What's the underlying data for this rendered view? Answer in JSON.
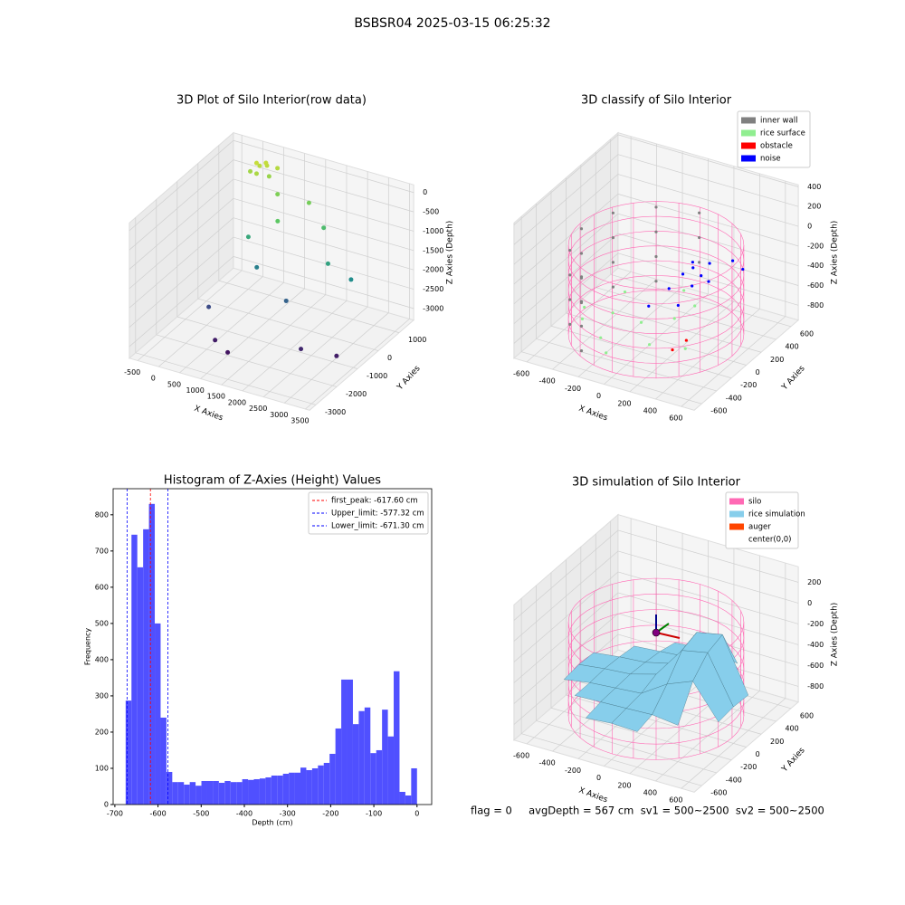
{
  "title": "BSBSR04 2025-03-15 06:25:32",
  "status": "flag = 0     avgDepth = 567 cm  sv1 = 500~2500  sv2 = 500~2500",
  "chart_data": [
    {
      "type": "scatter3d",
      "title": "3D Plot of Silo Interior(row data)",
      "x_label": "X Axies",
      "y_label": "Y Axies",
      "z_label": "Z Axies (Depth)",
      "xlim": [
        -700,
        3600
      ],
      "ylim": [
        -3300,
        1700
      ],
      "zlim": [
        -3300,
        200
      ],
      "xticks": [
        -500,
        0,
        500,
        1000,
        1500,
        2000,
        2500,
        3000,
        3500
      ],
      "yticks": [
        -3000,
        -2000,
        -1000,
        0,
        1000
      ],
      "zticks": [
        -3000,
        -2500,
        -2000,
        -1500,
        -1000,
        -500,
        0
      ],
      "colormap": "viridis",
      "series": [
        {
          "x": [
            100,
            300,
            500,
            200,
            0,
            400,
            250,
            150,
            800,
            1500,
            1200,
            2000,
            600,
            900,
            2500,
            3000,
            1800,
            300,
            700,
            1100,
            2500,
            3200
          ],
          "y": [
            1200,
            1300,
            1400,
            1000,
            1100,
            1200,
            1350,
            1250,
            800,
            900,
            0,
            600,
            -200,
            -400,
            -200,
            -100,
            -800,
            -1500,
            -2000,
            -2200,
            -1500,
            -1200
          ],
          "z": [
            -100,
            -150,
            -200,
            -250,
            -300,
            -350,
            -120,
            -180,
            -500,
            -550,
            -700,
            -900,
            -1200,
            -1800,
            -1300,
            -1600,
            -2200,
            -2500,
            -3000,
            -3100,
            -2900,
            -3000
          ]
        }
      ]
    },
    {
      "type": "scatter3d",
      "title": "3D classify of Silo Interior",
      "x_label": "X Axies",
      "y_label": "Y Axies",
      "z_label": "Z Axies (Depth)",
      "xlim": [
        -700,
        700
      ],
      "ylim": [
        -700,
        700
      ],
      "zlim": [
        -950,
        420
      ],
      "xticks": [
        -600,
        -400,
        -200,
        0,
        200,
        400,
        600
      ],
      "yticks": [
        -600,
        -400,
        -200,
        0,
        200,
        400,
        600
      ],
      "zticks": [
        -800,
        -600,
        -400,
        -200,
        0,
        200,
        400
      ],
      "legend": "upper right",
      "cylinder": {
        "radius": 590,
        "height_range": [
          -900,
          0
        ],
        "color": "#ff69b4"
      },
      "series": [
        {
          "name": "inner wall",
          "color": "#808080",
          "x": [
            -290,
            -290,
            -290,
            -290,
            -502,
            -502,
            -502,
            -502,
            -580,
            -580,
            -580,
            -580,
            -502,
            -502,
            -502,
            -502,
            -290,
            -290,
            -290,
            -290,
            0,
            0,
            0
          ],
          "y": [
            502,
            502,
            502,
            502,
            290,
            290,
            290,
            290,
            0,
            0,
            0,
            0,
            -290,
            -290,
            -290,
            -290,
            -502,
            -502,
            -502,
            -502,
            580,
            580,
            580
          ],
          "z": [
            -50,
            -300,
            -550,
            -800,
            -50,
            -300,
            -550,
            -800,
            -50,
            -300,
            -550,
            -800,
            -50,
            -300,
            -550,
            -800,
            -100,
            -350,
            -600,
            -850,
            -50,
            -300,
            -550
          ]
        },
        {
          "name": "rice surface",
          "color": "#90ee90",
          "x": [
            -400,
            -200,
            0,
            200,
            -300,
            100,
            300,
            -100,
            400,
            -500,
            -250,
            150
          ],
          "y": [
            -300,
            -400,
            -200,
            -100,
            100,
            200,
            0,
            -500,
            -300,
            -100,
            -150,
            -350
          ],
          "z": [
            -700,
            -750,
            -650,
            -600,
            -650,
            -550,
            -500,
            -800,
            -700,
            -750,
            -680,
            -720
          ]
        },
        {
          "name": "obstacle",
          "color": "#ff0000",
          "x": [
            350,
            300
          ],
          "y": [
            -200,
            -300
          ],
          "z": [
            -700,
            -750
          ]
        },
        {
          "name": "noise",
          "color": "#0000ff",
          "x": [
            150,
            200,
            250,
            300,
            100,
            350,
            0,
            450,
            500,
            200,
            180,
            280
          ],
          "y": [
            100,
            150,
            50,
            200,
            0,
            100,
            -100,
            250,
            300,
            -50,
            180,
            120
          ],
          "z": [
            -300,
            -250,
            -350,
            -200,
            -400,
            -300,
            -550,
            -150,
            -250,
            -500,
            -220,
            -280
          ]
        }
      ]
    },
    {
      "type": "histogram",
      "title": "Histogram of Z-Axies (Height) Values",
      "x_label": "Depth (cm)",
      "y_label": "Frequency",
      "xlim": [
        -704,
        34
      ],
      "ylim": [
        0,
        872
      ],
      "xticks": [
        -700,
        -600,
        -500,
        -400,
        -300,
        -200,
        -100,
        0
      ],
      "yticks": [
        0,
        100,
        200,
        300,
        400,
        500,
        600,
        700,
        800
      ],
      "color": "#5050ff",
      "legend": "upper right",
      "bins": [
        -675,
        -661.5,
        -648,
        -634.5,
        -621,
        -607.5,
        -594,
        -580.5,
        -567,
        -553.5,
        -540,
        -526.5,
        -513,
        -499.5,
        -486,
        -472.5,
        -459,
        -445.5,
        -432,
        -418.5,
        -405,
        -391.5,
        -378,
        -364.5,
        -351,
        -337.5,
        -324,
        -310.5,
        -297,
        -283.5,
        -270,
        -256.5,
        -243,
        -229.5,
        -216,
        -202.5,
        -189,
        -175.5,
        -162,
        -148.5,
        -135,
        -121.5,
        -108,
        -94.5,
        -81,
        -67.5,
        -54,
        -40.5,
        -27,
        -13.5,
        0
      ],
      "counts": [
        287,
        745,
        655,
        760,
        830,
        500,
        240,
        90,
        62,
        62,
        55,
        62,
        52,
        65,
        65,
        65,
        60,
        65,
        62,
        62,
        70,
        68,
        70,
        72,
        75,
        80,
        80,
        85,
        88,
        88,
        102,
        95,
        100,
        108,
        115,
        140,
        210,
        345,
        345,
        222,
        258,
        268,
        142,
        150,
        262,
        188,
        368,
        35,
        25,
        100
      ],
      "vlines": [
        {
          "value": -617.6,
          "label": "first_peak: -617.60 cm",
          "color": "#ff0000"
        },
        {
          "value": -577.32,
          "label": "Upper_limit: -577.32 cm",
          "color": "#0000ff"
        },
        {
          "value": -671.3,
          "label": "Lower_limit: -671.30 cm",
          "color": "#0000ff"
        }
      ]
    },
    {
      "type": "surface3d",
      "title": "3D simulation of Silo Interior",
      "x_label": "X Axies",
      "y_label": "Y Axies",
      "z_label": "Z Axies (Depth)",
      "xlim": [
        -700,
        700
      ],
      "ylim": [
        -700,
        700
      ],
      "zlim": [
        -950,
        350
      ],
      "xticks": [
        -600,
        -400,
        -200,
        0,
        200,
        400,
        600
      ],
      "yticks": [
        -600,
        -400,
        -200,
        0,
        200,
        400,
        600
      ],
      "zticks": [
        -800,
        -600,
        -400,
        -200,
        0,
        200
      ],
      "legend_position": "upper right",
      "legend": [
        {
          "name": "silo",
          "color": "#ff69b4"
        },
        {
          "name": "rice simulation",
          "color": "#87ceeb"
        },
        {
          "name": "auger",
          "color": "#ff4500"
        },
        {
          "name": "center(0,0)",
          "color": "#ffffff"
        }
      ],
      "cylinder": {
        "radius": 590,
        "height_range": [
          -900,
          0
        ],
        "color": "#ff69b4"
      },
      "center_point": {
        "x": 0,
        "y": 0,
        "z": -100,
        "color": "#800080"
      },
      "surface": {
        "color": "#87ceeb",
        "x": [
          -600,
          -400,
          -200,
          0,
          200,
          400,
          600
        ],
        "y": [
          -600,
          -400,
          -200,
          0,
          200,
          400,
          600
        ],
        "z": [
          [
            null,
            null,
            -620,
            -600,
            -610,
            null,
            null
          ],
          [
            null,
            -600,
            -590,
            -580,
            -570,
            -600,
            null
          ],
          [
            -640,
            -600,
            -580,
            -560,
            -400,
            -300,
            -620
          ],
          [
            -620,
            -590,
            -570,
            -500,
            -200,
            -150,
            -600
          ],
          [
            -630,
            -600,
            -580,
            -520,
            -150,
            -100,
            -610
          ],
          [
            null,
            -620,
            -600,
            -580,
            -450,
            -500,
            null
          ],
          [
            null,
            null,
            -640,
            -620,
            -600,
            null,
            null
          ]
        ]
      }
    }
  ]
}
